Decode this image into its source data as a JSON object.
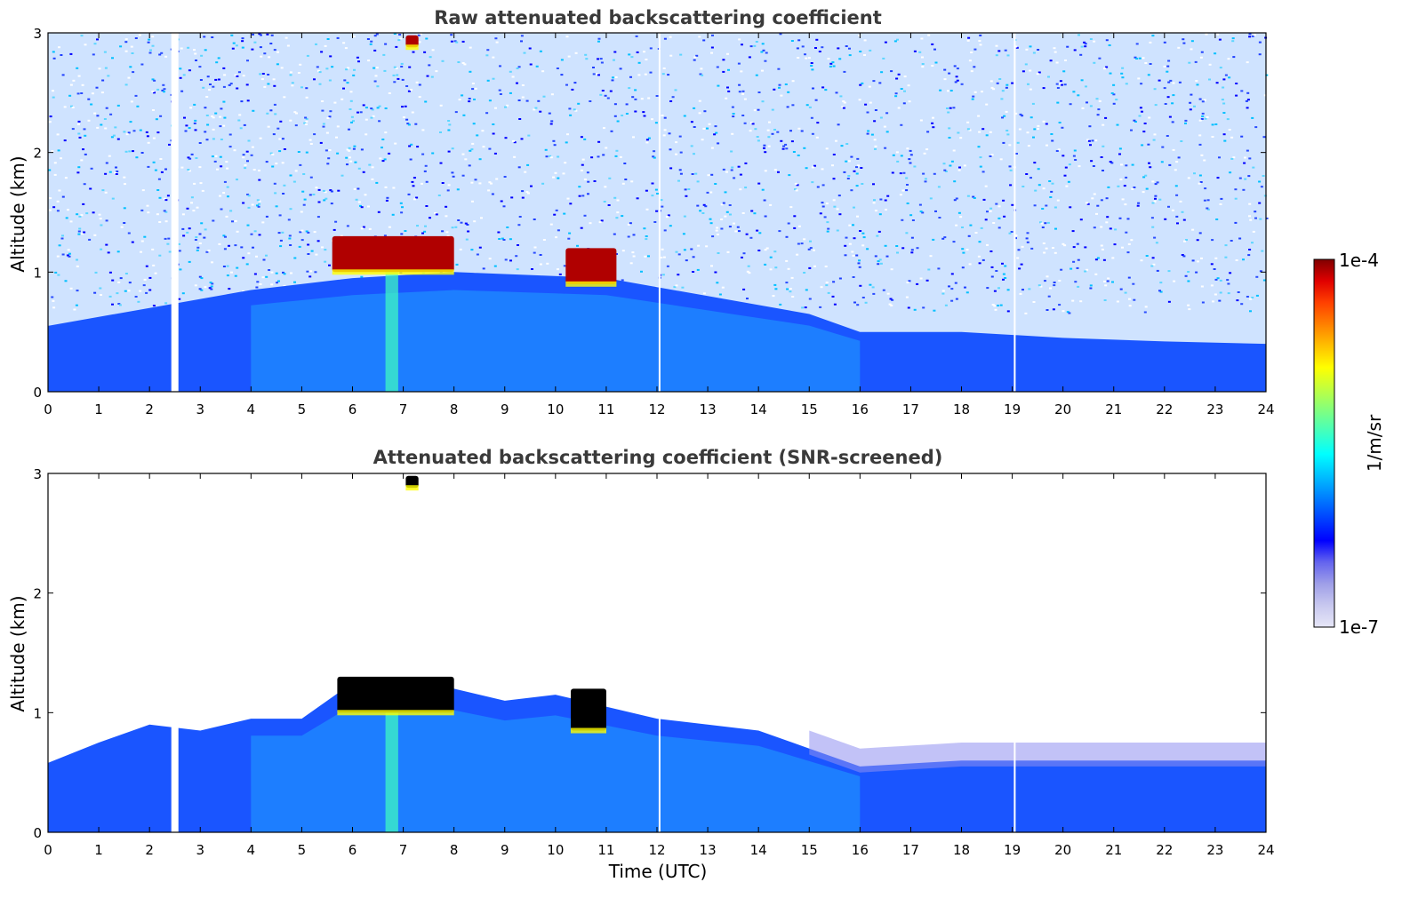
{
  "chart_data": [
    {
      "type": "heatmap",
      "title": "Raw attenuated backscattering coefficient",
      "xlabel": "",
      "ylabel": "Altitude (km)",
      "xlim": [
        0,
        24
      ],
      "ylim": [
        0,
        3
      ],
      "xticks": [
        "0",
        "1",
        "2",
        "3",
        "4",
        "5",
        "6",
        "7",
        "8",
        "9",
        "10",
        "11",
        "12",
        "13",
        "14",
        "15",
        "16",
        "17",
        "18",
        "19",
        "20",
        "21",
        "22",
        "23",
        "24"
      ],
      "yticks": [
        "0",
        "1",
        "2",
        "3"
      ],
      "colorscale": "jet",
      "data_gaps_utc": [
        2.5,
        12.05,
        19.05
      ],
      "boundary_layer_top_km": [
        {
          "x": 0,
          "y": 0.55
        },
        {
          "x": 2,
          "y": 0.7
        },
        {
          "x": 4,
          "y": 0.85
        },
        {
          "x": 6,
          "y": 0.95
        },
        {
          "x": 8,
          "y": 1.0
        },
        {
          "x": 11,
          "y": 0.95
        },
        {
          "x": 13,
          "y": 0.8
        },
        {
          "x": 15,
          "y": 0.65
        },
        {
          "x": 16,
          "y": 0.5
        },
        {
          "x": 18,
          "y": 0.5
        },
        {
          "x": 20,
          "y": 0.45
        },
        {
          "x": 22,
          "y": 0.42
        },
        {
          "x": 24,
          "y": 0.4
        }
      ],
      "cloud_features": [
        {
          "x_start": 5.6,
          "x_end": 8.0,
          "base_km": 1.0,
          "top_km": 1.3,
          "level": "1e-4"
        },
        {
          "x_start": 10.2,
          "x_end": 11.2,
          "base_km": 0.9,
          "top_km": 1.2,
          "level": "1e-4"
        },
        {
          "x_start": 7.05,
          "x_end": 7.3,
          "base_km": 2.88,
          "top_km": 2.98,
          "level": "1e-4"
        }
      ]
    },
    {
      "type": "heatmap",
      "title": "Attenuated backscattering coefficient (SNR-screened)",
      "xlabel": "Time (UTC)",
      "ylabel": "Altitude (km)",
      "xlim": [
        0,
        24
      ],
      "ylim": [
        0,
        3
      ],
      "xticks": [
        "0",
        "1",
        "2",
        "3",
        "4",
        "5",
        "6",
        "7",
        "8",
        "9",
        "10",
        "11",
        "12",
        "13",
        "14",
        "15",
        "16",
        "17",
        "18",
        "19",
        "20",
        "21",
        "22",
        "23",
        "24"
      ],
      "yticks": [
        "0",
        "1",
        "2",
        "3"
      ],
      "colorscale": "jet",
      "data_gaps_utc": [
        2.5,
        12.05,
        19.05
      ],
      "boundary_layer_top_km": [
        {
          "x": 0,
          "y": 0.58
        },
        {
          "x": 1,
          "y": 0.75
        },
        {
          "x": 2,
          "y": 0.9
        },
        {
          "x": 3,
          "y": 0.85
        },
        {
          "x": 4,
          "y": 0.95
        },
        {
          "x": 5,
          "y": 0.95
        },
        {
          "x": 6,
          "y": 1.25
        },
        {
          "x": 8,
          "y": 1.2
        },
        {
          "x": 9,
          "y": 1.1
        },
        {
          "x": 10,
          "y": 1.15
        },
        {
          "x": 11,
          "y": 1.05
        },
        {
          "x": 12,
          "y": 0.95
        },
        {
          "x": 13,
          "y": 0.9
        },
        {
          "x": 14,
          "y": 0.85
        },
        {
          "x": 15,
          "y": 0.7
        },
        {
          "x": 16,
          "y": 0.55
        },
        {
          "x": 18,
          "y": 0.6
        },
        {
          "x": 20,
          "y": 0.6
        },
        {
          "x": 22,
          "y": 0.6
        },
        {
          "x": 24,
          "y": 0.6
        }
      ],
      "cloud_features": [
        {
          "x_start": 5.7,
          "x_end": 8.0,
          "base_km": 1.0,
          "top_km": 1.3,
          "level": "saturated"
        },
        {
          "x_start": 10.3,
          "x_end": 11.0,
          "base_km": 0.85,
          "top_km": 1.2,
          "level": "saturated"
        },
        {
          "x_start": 7.05,
          "x_end": 7.3,
          "base_km": 2.88,
          "top_km": 2.98,
          "level": "saturated"
        }
      ]
    }
  ],
  "colorbar": {
    "label": "1/m/sr",
    "max_label": "1e-4",
    "min_label": "1e-7",
    "colors": [
      "#e6e6f7",
      "#c8c8ef",
      "#9f9fe8",
      "#6464ee",
      "#0000ff",
      "#0040ff",
      "#0080ff",
      "#00c0ff",
      "#00ffff",
      "#40ffc0",
      "#80ff80",
      "#c0ff40",
      "#ffff00",
      "#ffc000",
      "#ff8000",
      "#ff4000",
      "#e00000",
      "#800000"
    ]
  }
}
